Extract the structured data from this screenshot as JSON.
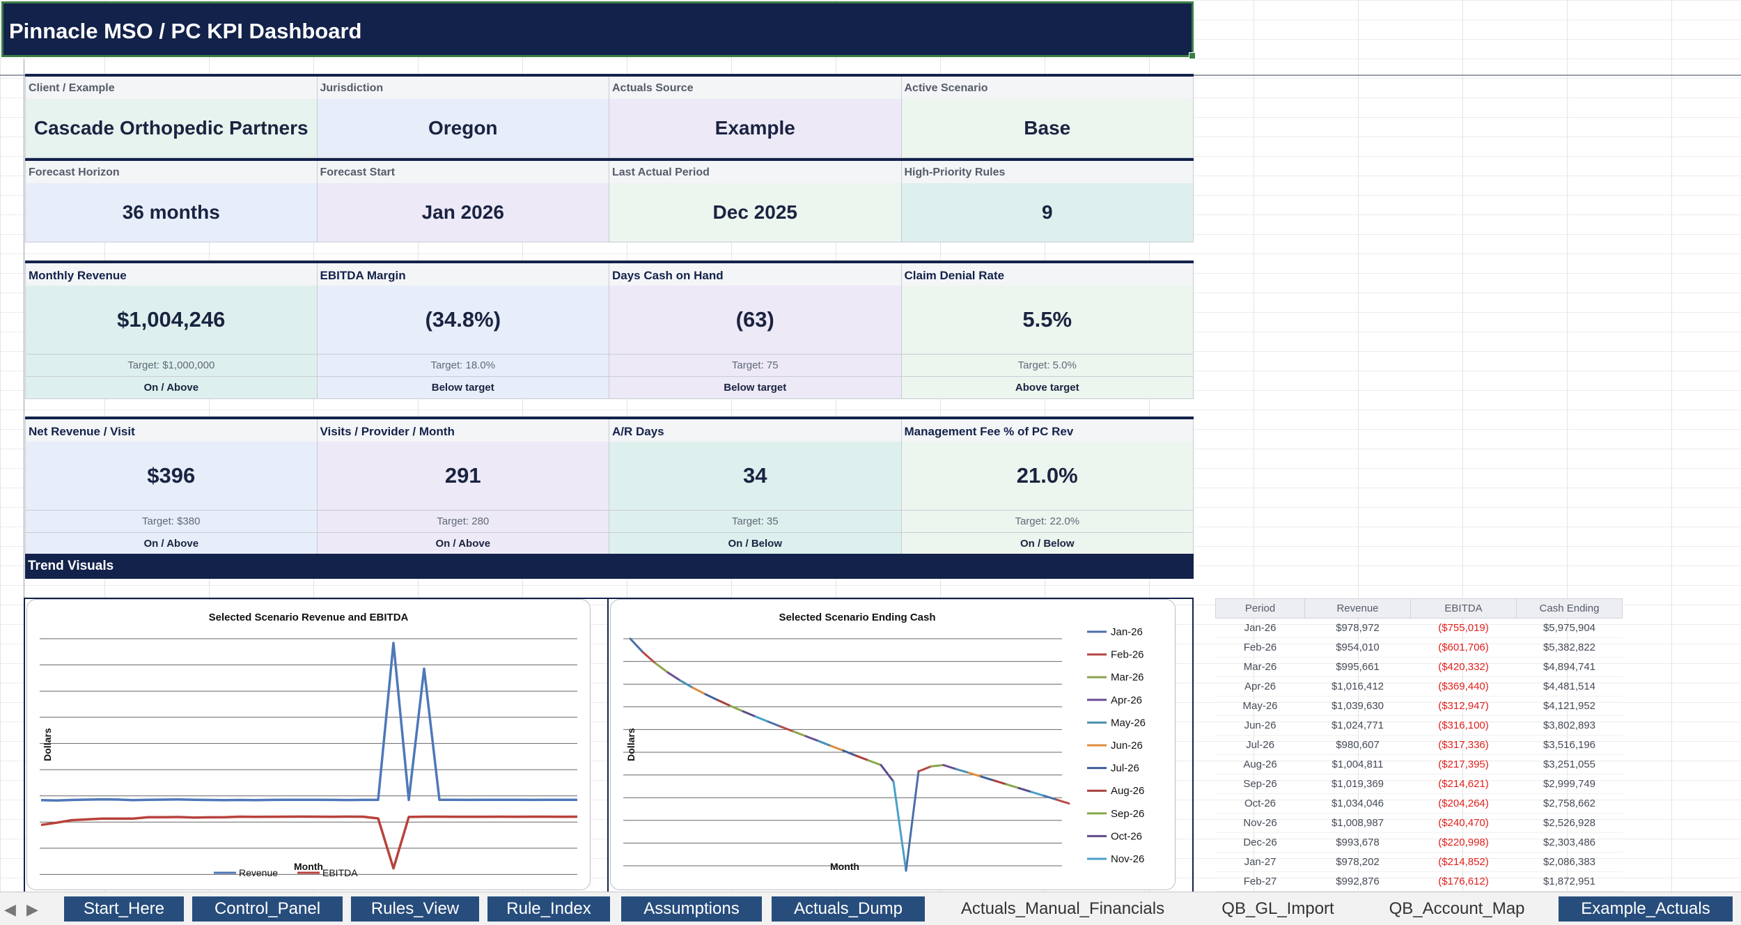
{
  "title": "Pinnacle MSO / PC KPI Dashboard",
  "info_rows": [
    [
      {
        "label": "Client / Example",
        "value": "Cascade Orthopedic Partners",
        "color": "c-green"
      },
      {
        "label": "Jurisdiction",
        "value": "Oregon",
        "color": "c-blue"
      },
      {
        "label": "Actuals Source",
        "value": "Example",
        "color": "c-purple"
      },
      {
        "label": "Active Scenario",
        "value": "Base",
        "color": "c-mint"
      }
    ],
    [
      {
        "label": "Forecast Horizon",
        "value": "36 months",
        "color": "c-blue"
      },
      {
        "label": "Forecast Start",
        "value": "Jan 2026",
        "color": "c-purple"
      },
      {
        "label": "Last Actual Period",
        "value": "Dec 2025",
        "color": "c-mint"
      },
      {
        "label": "High-Priority Rules",
        "value": "9",
        "color": "c-teal"
      }
    ]
  ],
  "kpi_rows": [
    [
      {
        "label": "Monthly Revenue",
        "value": "$1,004,246",
        "target": "Target: $1,000,000",
        "status": "On / Above",
        "color": "c-teal"
      },
      {
        "label": "EBITDA Margin",
        "value": "(34.8%)",
        "target": "Target: 18.0%",
        "status": "Below target",
        "color": "c-blue"
      },
      {
        "label": "Days Cash on Hand",
        "value": "(63)",
        "target": "Target: 75",
        "status": "Below target",
        "color": "c-purple"
      },
      {
        "label": "Claim Denial Rate",
        "value": "5.5%",
        "target": "Target: 5.0%",
        "status": "Above target",
        "color": "c-mint"
      }
    ],
    [
      {
        "label": "Net Revenue / Visit",
        "value": "$396",
        "target": "Target: $380",
        "status": "On / Above",
        "color": "c-blue"
      },
      {
        "label": "Visits / Provider / Month",
        "value": "291",
        "target": "Target: 280",
        "status": "On / Above",
        "color": "c-purple"
      },
      {
        "label": "A/R Days",
        "value": "34",
        "target": "Target: 35",
        "status": "On / Below",
        "color": "c-teal"
      },
      {
        "label": "Management Fee % of PC Rev",
        "value": "21.0%",
        "target": "Target: 22.0%",
        "status": "On / Below",
        "color": "c-mint"
      }
    ]
  ],
  "trend_header": "Trend Visuals",
  "charts": {
    "revenue_title": "Selected Scenario Revenue and EBITDA",
    "revenue_ylabel": "Dollars",
    "revenue_xlabel": "Month",
    "revenue_legend": [
      "Revenue",
      "EBITDA"
    ],
    "cash_title": "Selected Scenario Ending Cash",
    "cash_ylabel": "Dollars",
    "cash_xlabel": "Month",
    "cash_legend": [
      "Jan-26",
      "Feb-26",
      "Mar-26",
      "Apr-26",
      "May-26",
      "Jun-26",
      "Jul-26",
      "Aug-26",
      "Sep-26",
      "Oct-26",
      "Nov-26"
    ],
    "cash_legend_colors": [
      "#4a6fa8",
      "#b54a46",
      "#8ea44e",
      "#6b4f96",
      "#4a8fb0",
      "#e08d3c",
      "#3d5f99",
      "#a8403c",
      "#86a94a",
      "#5e4a8a",
      "#4aa0c8"
    ]
  },
  "chart_data": [
    {
      "type": "line",
      "title": "Selected Scenario Revenue and EBITDA",
      "xlabel": "Month",
      "ylabel": "Dollars",
      "series": [
        {
          "name": "Revenue",
          "color": "#4e78b8",
          "values": [
            978972,
            954010,
            995661,
            1016412,
            1039630,
            1024771,
            980607,
            1004811,
            1019369,
            1034046,
            1008987,
            993678,
            978202,
            992876,
            985000,
            998000,
            1002000,
            1010000,
            1005000,
            996000,
            990000,
            1000000,
            1008000,
            12000000,
            1000000,
            10200000,
            1004000,
            1001000,
            999000,
            1003000,
            1006000,
            1002000,
            998000,
            1004000,
            1007000,
            1004246
          ]
        },
        {
          "name": "EBITDA",
          "color": "#b8423c",
          "values": [
            -755019,
            -601706,
            -420332,
            -369440,
            -312947,
            -316100,
            -317336,
            -217395,
            -214621,
            -204264,
            -240470,
            -220998,
            -214852,
            -176612,
            -190000,
            -185000,
            -180000,
            -175000,
            -178000,
            -182000,
            -176000,
            -179000,
            -300000,
            -3800000,
            -200000,
            -178000,
            -180000,
            -182000,
            -185000,
            -181000,
            -179000,
            -183000,
            -180000,
            -178000,
            -182000,
            -180000
          ]
        }
      ]
    },
    {
      "type": "line",
      "title": "Selected Scenario Ending Cash",
      "xlabel": "Month",
      "ylabel": "Dollars",
      "series": [
        {
          "name": "Cash Ending",
          "values": [
            5975904,
            5382822,
            4894741,
            4481514,
            4121952,
            3802893,
            3516196,
            3251055,
            2999749,
            2758662,
            2526928,
            2303486,
            2086383,
            1872951,
            1660000,
            1450000,
            1230000,
            1020000,
            800000,
            590000,
            380000,
            -350000,
            -4300000,
            100000,
            320000,
            380000,
            200000,
            40000,
            -130000,
            -300000,
            -470000,
            -640000,
            -810000,
            -980000,
            -1150000,
            -1320000
          ]
        }
      ]
    }
  ],
  "side_table": {
    "headers": [
      "Period",
      "Revenue",
      "EBITDA",
      "Cash Ending"
    ],
    "rows": [
      [
        "Jan-26",
        "$978,972",
        "($755,019)",
        "$5,975,904"
      ],
      [
        "Feb-26",
        "$954,010",
        "($601,706)",
        "$5,382,822"
      ],
      [
        "Mar-26",
        "$995,661",
        "($420,332)",
        "$4,894,741"
      ],
      [
        "Apr-26",
        "$1,016,412",
        "($369,440)",
        "$4,481,514"
      ],
      [
        "May-26",
        "$1,039,630",
        "($312,947)",
        "$4,121,952"
      ],
      [
        "Jun-26",
        "$1,024,771",
        "($316,100)",
        "$3,802,893"
      ],
      [
        "Jul-26",
        "$980,607",
        "($317,336)",
        "$3,516,196"
      ],
      [
        "Aug-26",
        "$1,004,811",
        "($217,395)",
        "$3,251,055"
      ],
      [
        "Sep-26",
        "$1,019,369",
        "($214,621)",
        "$2,999,749"
      ],
      [
        "Oct-26",
        "$1,034,046",
        "($204,264)",
        "$2,758,662"
      ],
      [
        "Nov-26",
        "$1,008,987",
        "($240,470)",
        "$2,526,928"
      ],
      [
        "Dec-26",
        "$993,678",
        "($220,998)",
        "$2,303,486"
      ],
      [
        "Jan-27",
        "$978,202",
        "($214,852)",
        "$2,086,383"
      ],
      [
        "Feb-27",
        "$992,876",
        "($176,612)",
        "$1,872,951"
      ]
    ]
  },
  "tabs": [
    {
      "label": "Start_Here",
      "style": "dark"
    },
    {
      "label": "Control_Panel",
      "style": "dark"
    },
    {
      "label": "Rules_View",
      "style": "dark"
    },
    {
      "label": "Rule_Index",
      "style": "dark"
    },
    {
      "label": "Assumptions",
      "style": "dark"
    },
    {
      "label": "Actuals_Dump",
      "style": "dark"
    },
    {
      "label": "Actuals_Manual_Financials",
      "style": "light"
    },
    {
      "label": "QB_GL_Import",
      "style": "light"
    },
    {
      "label": "QB_Account_Map",
      "style": "light"
    },
    {
      "label": "Example_Actuals",
      "style": "dark"
    }
  ],
  "icons": {
    "prev": "chevron-left-icon",
    "next": "chevron-right-icon"
  }
}
